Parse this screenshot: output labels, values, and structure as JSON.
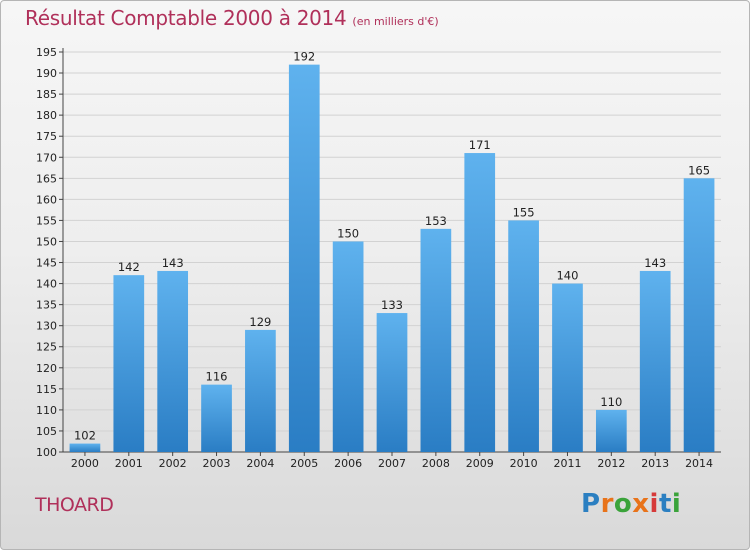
{
  "header": {
    "title": "Résultat Comptable 2000 à 2014",
    "subtitle": "(en milliers d'€)"
  },
  "footer": {
    "commune": "THOARD",
    "logo_text": "Proxiti"
  },
  "colors": {
    "title": "#b0305a",
    "bar_top": "#5fb2ee",
    "bar_bottom": "#2a7dc4",
    "logo_letters": [
      "#2b7fc1",
      "#e8731a",
      "#3aa33a",
      "#e8731a",
      "#d63a3a",
      "#2b7fc1",
      "#3aa33a"
    ]
  },
  "chart_data": {
    "type": "bar",
    "title": "Résultat Comptable 2000 à 2014",
    "xlabel": "",
    "ylabel": "",
    "categories": [
      "2000",
      "2001",
      "2002",
      "2003",
      "2004",
      "2005",
      "2006",
      "2007",
      "2008",
      "2009",
      "2010",
      "2011",
      "2012",
      "2013",
      "2014"
    ],
    "values": [
      102,
      142,
      143,
      116,
      129,
      192,
      150,
      133,
      153,
      171,
      155,
      140,
      110,
      143,
      165
    ],
    "ylim": [
      100,
      195
    ],
    "yticks": [
      100,
      105,
      110,
      115,
      120,
      125,
      130,
      135,
      140,
      145,
      150,
      155,
      160,
      165,
      170,
      175,
      180,
      185,
      190,
      195
    ],
    "grid": true,
    "legend": "none"
  }
}
